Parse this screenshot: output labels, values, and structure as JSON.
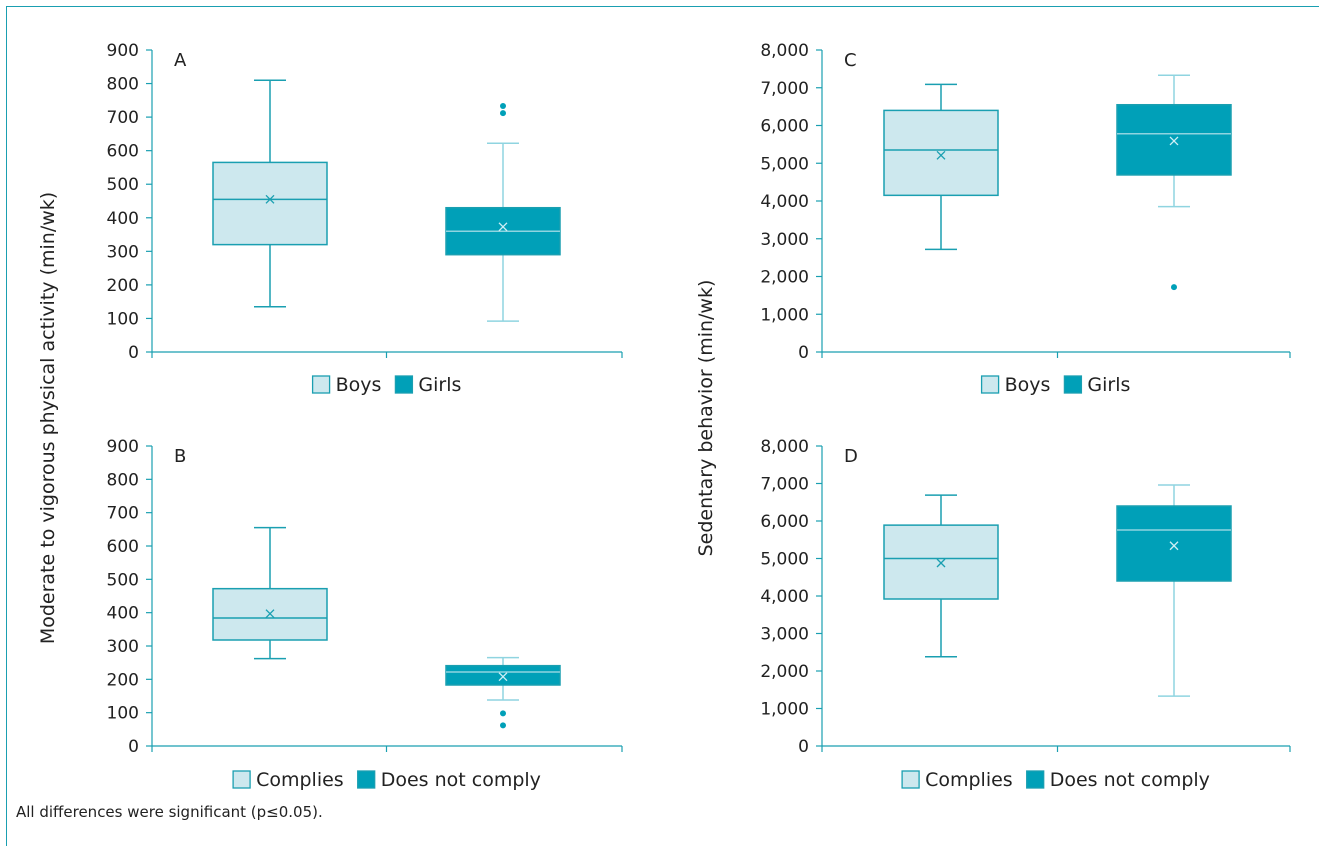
{
  "figure": {
    "note": "All differences were significant (p≤0.05).",
    "left_ylabel": "Moderate to vigorous physical activity (min/wk)",
    "right_ylabel": "Sedentary behavior (min/wk)"
  },
  "colors": {
    "frame": "#1a9fb1",
    "light_fill": "#cde8ee",
    "dark_fill": "#00a0b8",
    "line": "#1a9fb1",
    "dark_median": "#8fd4e0",
    "axis": "#1a9fb1"
  },
  "chart_data": [
    {
      "panel": "A",
      "type": "box",
      "categories": [
        "Boys",
        "Girls"
      ],
      "ylim": [
        0,
        900
      ],
      "yticks": [
        0,
        100,
        200,
        300,
        400,
        500,
        600,
        700,
        800,
        900
      ],
      "ytick_labels": [
        "0",
        "100",
        "200",
        "300",
        "400",
        "500",
        "600",
        "700",
        "800",
        "900"
      ],
      "legend": [
        "Boys",
        "Girls"
      ],
      "series": [
        {
          "name": "Boys",
          "min": 135,
          "q1": 320,
          "median": 455,
          "q3": 565,
          "max": 810,
          "mean": 455,
          "outliers": []
        },
        {
          "name": "Girls",
          "min": 92,
          "q1": 290,
          "median": 360,
          "q3": 430,
          "max": 622,
          "mean": 373,
          "outliers": [
            712,
            733
          ]
        }
      ]
    },
    {
      "panel": "B",
      "type": "box",
      "categories": [
        "Complies",
        "Does not comply"
      ],
      "ylim": [
        0,
        900
      ],
      "yticks": [
        0,
        100,
        200,
        300,
        400,
        500,
        600,
        700,
        800,
        900
      ],
      "ytick_labels": [
        "0",
        "100",
        "200",
        "300",
        "400",
        "500",
        "600",
        "700",
        "800",
        "900"
      ],
      "legend": [
        "Complies",
        "Does not comply"
      ],
      "series": [
        {
          "name": "Complies",
          "min": 262,
          "q1": 318,
          "median": 384,
          "q3": 472,
          "max": 655,
          "mean": 397,
          "outliers": []
        },
        {
          "name": "Does not comply",
          "min": 138,
          "q1": 183,
          "median": 222,
          "q3": 241,
          "max": 265,
          "mean": 208,
          "outliers": [
            62,
            98
          ]
        }
      ]
    },
    {
      "panel": "C",
      "type": "box",
      "categories": [
        "Boys",
        "Girls"
      ],
      "ylim": [
        0,
        8000
      ],
      "yticks": [
        0,
        1000,
        2000,
        3000,
        4000,
        5000,
        6000,
        7000,
        8000
      ],
      "ytick_labels": [
        "0",
        "1,000",
        "2,000",
        "3,000",
        "4,000",
        "5,000",
        "6,000",
        "7,000",
        "8,000"
      ],
      "legend": [
        "Boys",
        "Girls"
      ],
      "series": [
        {
          "name": "Boys",
          "min": 2720,
          "q1": 4150,
          "median": 5350,
          "q3": 6400,
          "max": 7090,
          "mean": 5210,
          "outliers": []
        },
        {
          "name": "Girls",
          "min": 3850,
          "q1": 4690,
          "median": 5780,
          "q3": 6550,
          "max": 7330,
          "mean": 5590,
          "outliers": [
            1720
          ]
        }
      ]
    },
    {
      "panel": "D",
      "type": "box",
      "categories": [
        "Complies",
        "Does not comply"
      ],
      "ylim": [
        0,
        8000
      ],
      "yticks": [
        0,
        1000,
        2000,
        3000,
        4000,
        5000,
        6000,
        7000,
        8000
      ],
      "ytick_labels": [
        "0",
        "1,000",
        "2,000",
        "3,000",
        "4,000",
        "5,000",
        "6,000",
        "7,000",
        "8,000"
      ],
      "legend": [
        "Complies",
        "Does not comply"
      ],
      "series": [
        {
          "name": "Complies",
          "min": 2380,
          "q1": 3920,
          "median": 5000,
          "q3": 5890,
          "max": 6690,
          "mean": 4880,
          "outliers": []
        },
        {
          "name": "Does not comply",
          "min": 1330,
          "q1": 4400,
          "median": 5760,
          "q3": 6400,
          "max": 6960,
          "mean": 5340,
          "outliers": []
        }
      ]
    }
  ]
}
